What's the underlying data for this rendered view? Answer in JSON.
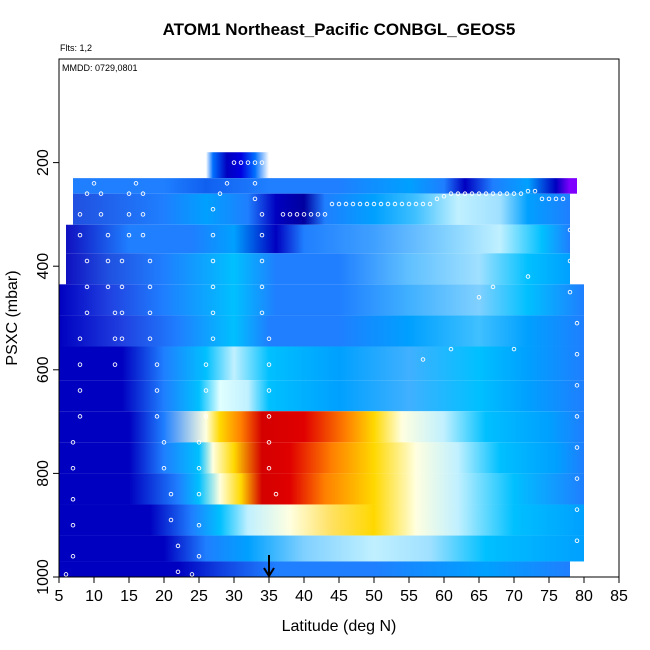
{
  "chart_data": {
    "type": "heatmap",
    "title": "ATOM1 Northeast_Pacific CONBGL_GEOS5",
    "annotations": {
      "flights": "Flts: 1,2",
      "dates": "MMDD: 0729,0801"
    },
    "xlabel": "Latitude (deg N)",
    "ylabel": "PSXC (mbar)",
    "xlim": [
      5,
      85
    ],
    "ylim": [
      1000,
      0
    ],
    "y_reversed": true,
    "xticks": [
      5,
      10,
      15,
      20,
      25,
      30,
      35,
      40,
      45,
      50,
      55,
      60,
      65,
      70,
      75,
      80,
      85
    ],
    "yticks": [
      200,
      400,
      600,
      800,
      1000
    ],
    "grid": false,
    "legend": "none",
    "marker_latitude": 35,
    "colors": {
      "low": "#0000c0",
      "mid_blue": "#1f7fff",
      "light_blue": "#00c0ff",
      "pale": "#ffffe0",
      "yellow": "#ffd800",
      "orange": "#ff8000",
      "red": "#d40000",
      "purple": "#8000ff"
    },
    "pressure_levels": [
      205,
      230,
      290,
      340,
      400,
      460,
      525,
      590,
      650,
      710,
      770,
      830,
      890,
      945,
      995
    ],
    "field_rows": [
      {
        "p": [
          180,
          230
        ],
        "lat": [
          26,
          35
        ],
        "stops": [
          [
            26,
            "#ffffff"
          ],
          [
            27,
            "#0070ff"
          ],
          [
            29,
            "#0000c0"
          ],
          [
            31,
            "#0000e0"
          ],
          [
            33,
            "#0070ff"
          ],
          [
            35,
            "#ffffff"
          ]
        ]
      },
      {
        "p": [
          230,
          260
        ],
        "lat": [
          7,
          79
        ],
        "stops": [
          [
            7,
            "#1f7fff"
          ],
          [
            20,
            "#1f7fff"
          ],
          [
            26,
            "#1060f0"
          ],
          [
            35,
            "#1f7fff"
          ],
          [
            45,
            "#1f7fff"
          ],
          [
            55,
            "#00a0ff"
          ],
          [
            60,
            "#1f7fff"
          ],
          [
            63,
            "#0000c0"
          ],
          [
            67,
            "#1f7fff"
          ],
          [
            72,
            "#00a0ff"
          ],
          [
            76,
            "#0000c0"
          ],
          [
            78,
            "#8000ff"
          ]
        ]
      },
      {
        "p": [
          260,
          320
        ],
        "lat": [
          7,
          78
        ],
        "stops": [
          [
            7,
            "#2050e0"
          ],
          [
            20,
            "#1f7fff"
          ],
          [
            26,
            "#00a0ff"
          ],
          [
            32,
            "#1f7fff"
          ],
          [
            36,
            "#0000c0"
          ],
          [
            40,
            "#0000a0"
          ],
          [
            43,
            "#1f7fff"
          ],
          [
            50,
            "#00a0ff"
          ],
          [
            56,
            "#40c0ff"
          ],
          [
            62,
            "#c0f0ff"
          ],
          [
            68,
            "#a0e0ff"
          ],
          [
            72,
            "#00a0ff"
          ],
          [
            78,
            "#1f7fff"
          ]
        ]
      },
      {
        "p": [
          320,
          375
        ],
        "lat": [
          6,
          78
        ],
        "stops": [
          [
            6,
            "#1010c0"
          ],
          [
            15,
            "#1f7fff"
          ],
          [
            24,
            "#1f7fff"
          ],
          [
            30,
            "#00a0ff"
          ],
          [
            36,
            "#0000c0"
          ],
          [
            40,
            "#1f7fff"
          ],
          [
            50,
            "#40a0ff"
          ],
          [
            60,
            "#80d0ff"
          ],
          [
            68,
            "#c0f0ff"
          ],
          [
            74,
            "#00c0ff"
          ],
          [
            78,
            "#1f7fff"
          ]
        ]
      },
      {
        "p": [
          375,
          435
        ],
        "lat": [
          6,
          78
        ],
        "stops": [
          [
            6,
            "#1010c0"
          ],
          [
            12,
            "#2050e0"
          ],
          [
            20,
            "#1f7fff"
          ],
          [
            30,
            "#00c0ff"
          ],
          [
            36,
            "#1f7fff"
          ],
          [
            45,
            "#1f7fff"
          ],
          [
            55,
            "#60c0ff"
          ],
          [
            65,
            "#a0e0ff"
          ],
          [
            72,
            "#00c0ff"
          ],
          [
            78,
            "#00a0ff"
          ]
        ]
      },
      {
        "p": [
          435,
          495
        ],
        "lat": [
          5,
          80
        ],
        "stops": [
          [
            5,
            "#0000c0"
          ],
          [
            12,
            "#2040e0"
          ],
          [
            20,
            "#1f7fff"
          ],
          [
            30,
            "#00c0ff"
          ],
          [
            36,
            "#1f7fff"
          ],
          [
            45,
            "#1f7fff"
          ],
          [
            55,
            "#40b0ff"
          ],
          [
            65,
            "#80d0ff"
          ],
          [
            72,
            "#00c0ff"
          ],
          [
            80,
            "#1f7fff"
          ]
        ]
      },
      {
        "p": [
          495,
          555
        ],
        "lat": [
          5,
          80
        ],
        "stops": [
          [
            5,
            "#0000c0"
          ],
          [
            14,
            "#2040e0"
          ],
          [
            22,
            "#1f7fff"
          ],
          [
            30,
            "#00c0ff"
          ],
          [
            35,
            "#1f7fff"
          ],
          [
            45,
            "#1f7fff"
          ],
          [
            55,
            "#00a0ff"
          ],
          [
            65,
            "#40c0ff"
          ],
          [
            72,
            "#00a0ff"
          ],
          [
            80,
            "#1f7fff"
          ]
        ]
      },
      {
        "p": [
          555,
          620
        ],
        "lat": [
          5,
          80
        ],
        "stops": [
          [
            5,
            "#0000c0"
          ],
          [
            14,
            "#0000c0"
          ],
          [
            20,
            "#1f7fff"
          ],
          [
            26,
            "#00c0ff"
          ],
          [
            30,
            "#c0f0ff"
          ],
          [
            35,
            "#00c0ff"
          ],
          [
            45,
            "#00a0ff"
          ],
          [
            55,
            "#40b0ff"
          ],
          [
            65,
            "#00c0ff"
          ],
          [
            72,
            "#00a0ff"
          ],
          [
            80,
            "#1f7fff"
          ]
        ]
      },
      {
        "p": [
          620,
          680
        ],
        "lat": [
          5,
          80
        ],
        "stops": [
          [
            5,
            "#0000c0"
          ],
          [
            14,
            "#0000c0"
          ],
          [
            20,
            "#1f7fff"
          ],
          [
            25,
            "#00c0ff"
          ],
          [
            28,
            "#e0ffff"
          ],
          [
            32,
            "#c0f0ff"
          ],
          [
            35,
            "#00c0ff"
          ],
          [
            45,
            "#00a0ff"
          ],
          [
            55,
            "#40b0ff"
          ],
          [
            65,
            "#00c0ff"
          ],
          [
            72,
            "#00a0ff"
          ],
          [
            80,
            "#1f7fff"
          ]
        ]
      },
      {
        "p": [
          680,
          740
        ],
        "lat": [
          5,
          80
        ],
        "stops": [
          [
            5,
            "#0000c0"
          ],
          [
            15,
            "#0000c0"
          ],
          [
            20,
            "#1f7fff"
          ],
          [
            26,
            "#ffffe0"
          ],
          [
            28,
            "#ffd800"
          ],
          [
            31,
            "#ff8000"
          ],
          [
            34,
            "#d40000"
          ],
          [
            40,
            "#e00000"
          ],
          [
            46,
            "#ff8000"
          ],
          [
            50,
            "#ffd800"
          ],
          [
            54,
            "#ffffe0"
          ],
          [
            60,
            "#c0f0ff"
          ],
          [
            66,
            "#00c0ff"
          ],
          [
            75,
            "#00a0ff"
          ],
          [
            80,
            "#1f7fff"
          ]
        ]
      },
      {
        "p": [
          740,
          800
        ],
        "lat": [
          5,
          80
        ],
        "stops": [
          [
            5,
            "#0000c0"
          ],
          [
            15,
            "#0000c0"
          ],
          [
            20,
            "#1f7fff"
          ],
          [
            25,
            "#00c0ff"
          ],
          [
            27,
            "#ffffe0"
          ],
          [
            30,
            "#ffd800"
          ],
          [
            34,
            "#d40000"
          ],
          [
            38,
            "#e00000"
          ],
          [
            44,
            "#ff8000"
          ],
          [
            50,
            "#ffd800"
          ],
          [
            56,
            "#ffffe0"
          ],
          [
            62,
            "#c0f0ff"
          ],
          [
            68,
            "#00c0ff"
          ],
          [
            76,
            "#00a0ff"
          ],
          [
            80,
            "#1f7fff"
          ]
        ]
      },
      {
        "p": [
          800,
          860
        ],
        "lat": [
          5,
          80
        ],
        "stops": [
          [
            5,
            "#0000c0"
          ],
          [
            15,
            "#0000c0"
          ],
          [
            22,
            "#1f7fff"
          ],
          [
            25,
            "#00c0ff"
          ],
          [
            28,
            "#ffffe0"
          ],
          [
            31,
            "#ffd800"
          ],
          [
            34,
            "#d40000"
          ],
          [
            38,
            "#e00000"
          ],
          [
            43,
            "#ff8000"
          ],
          [
            50,
            "#ffd800"
          ],
          [
            56,
            "#ffffe0"
          ],
          [
            62,
            "#c0f0ff"
          ],
          [
            70,
            "#00c0ff"
          ],
          [
            80,
            "#1f7fff"
          ]
        ]
      },
      {
        "p": [
          860,
          920
        ],
        "lat": [
          5,
          80
        ],
        "stops": [
          [
            5,
            "#0000c0"
          ],
          [
            18,
            "#0000c0"
          ],
          [
            24,
            "#1f7fff"
          ],
          [
            28,
            "#00c0ff"
          ],
          [
            32,
            "#c0f0ff"
          ],
          [
            38,
            "#ffffe0"
          ],
          [
            44,
            "#ffe060"
          ],
          [
            50,
            "#ffd800"
          ],
          [
            56,
            "#ffffe0"
          ],
          [
            62,
            "#c0f0ff"
          ],
          [
            70,
            "#00c0ff"
          ],
          [
            80,
            "#00a0ff"
          ]
        ]
      },
      {
        "p": [
          920,
          970
        ],
        "lat": [
          5,
          80
        ],
        "stops": [
          [
            5,
            "#0000c0"
          ],
          [
            20,
            "#0000c0"
          ],
          [
            26,
            "#1f7fff"
          ],
          [
            32,
            "#00a0ff"
          ],
          [
            40,
            "#80d0ff"
          ],
          [
            50,
            "#c0f0ff"
          ],
          [
            58,
            "#a0e0ff"
          ],
          [
            66,
            "#00c0ff"
          ],
          [
            80,
            "#00a0ff"
          ]
        ]
      },
      {
        "p": [
          970,
          1000
        ],
        "lat": [
          5,
          78
        ],
        "stops": [
          [
            5,
            "#0000c0"
          ],
          [
            22,
            "#0000c0"
          ],
          [
            28,
            "#1040e0"
          ],
          [
            36,
            "#1f7fff"
          ],
          [
            50,
            "#1f7fff"
          ],
          [
            66,
            "#00a0ff"
          ],
          [
            78,
            "#1f7fff"
          ]
        ]
      }
    ],
    "flight_track": [
      [
        6,
        995
      ],
      [
        7,
        960
      ],
      [
        7,
        900
      ],
      [
        7,
        850
      ],
      [
        7,
        790
      ],
      [
        7,
        740
      ],
      [
        8,
        690
      ],
      [
        8,
        640
      ],
      [
        8,
        590
      ],
      [
        8,
        540
      ],
      [
        9,
        490
      ],
      [
        9,
        440
      ],
      [
        9,
        390
      ],
      [
        8,
        340
      ],
      [
        8,
        300
      ],
      [
        9,
        260
      ],
      [
        10,
        240
      ],
      [
        11,
        260
      ],
      [
        11,
        300
      ],
      [
        12,
        340
      ],
      [
        12,
        390
      ],
      [
        12,
        440
      ],
      [
        13,
        490
      ],
      [
        13,
        540
      ],
      [
        13,
        590
      ],
      [
        14,
        540
      ],
      [
        14,
        490
      ],
      [
        14,
        440
      ],
      [
        14,
        390
      ],
      [
        15,
        340
      ],
      [
        15,
        300
      ],
      [
        15,
        260
      ],
      [
        16,
        240
      ],
      [
        17,
        260
      ],
      [
        17,
        300
      ],
      [
        17,
        340
      ],
      [
        18,
        390
      ],
      [
        18,
        440
      ],
      [
        18,
        490
      ],
      [
        18,
        540
      ],
      [
        19,
        590
      ],
      [
        19,
        640
      ],
      [
        19,
        690
      ],
      [
        20,
        740
      ],
      [
        20,
        790
      ],
      [
        21,
        840
      ],
      [
        21,
        890
      ],
      [
        22,
        940
      ],
      [
        22,
        990
      ],
      [
        24,
        995
      ],
      [
        25,
        960
      ],
      [
        25,
        900
      ],
      [
        25,
        840
      ],
      [
        25,
        790
      ],
      [
        25,
        740
      ],
      [
        26,
        690
      ],
      [
        26,
        640
      ],
      [
        26,
        590
      ],
      [
        27,
        540
      ],
      [
        27,
        490
      ],
      [
        27,
        440
      ],
      [
        27,
        390
      ],
      [
        27,
        340
      ],
      [
        27,
        290
      ],
      [
        28,
        260
      ],
      [
        29,
        240
      ],
      [
        30,
        200
      ],
      [
        31,
        200
      ],
      [
        32,
        200
      ],
      [
        33,
        200
      ],
      [
        34,
        200
      ],
      [
        33,
        240
      ],
      [
        33,
        270
      ],
      [
        34,
        300
      ],
      [
        34,
        340
      ],
      [
        34,
        390
      ],
      [
        34,
        440
      ],
      [
        34,
        490
      ],
      [
        35,
        540
      ],
      [
        35,
        590
      ],
      [
        35,
        640
      ],
      [
        35,
        690
      ],
      [
        35,
        740
      ],
      [
        35,
        790
      ],
      [
        36,
        840
      ],
      [
        37,
        300
      ],
      [
        38,
        300
      ],
      [
        39,
        300
      ],
      [
        40,
        300
      ],
      [
        41,
        300
      ],
      [
        42,
        300
      ],
      [
        43,
        300
      ],
      [
        44,
        280
      ],
      [
        45,
        280
      ],
      [
        46,
        280
      ],
      [
        47,
        280
      ],
      [
        48,
        280
      ],
      [
        49,
        280
      ],
      [
        50,
        280
      ],
      [
        51,
        280
      ],
      [
        52,
        280
      ],
      [
        53,
        280
      ],
      [
        54,
        280
      ],
      [
        55,
        280
      ],
      [
        56,
        280
      ],
      [
        57,
        280
      ],
      [
        58,
        280
      ],
      [
        59,
        270
      ],
      [
        60,
        265
      ],
      [
        61,
        260
      ],
      [
        62,
        260
      ],
      [
        63,
        260
      ],
      [
        64,
        260
      ],
      [
        65,
        260
      ],
      [
        66,
        260
      ],
      [
        67,
        260
      ],
      [
        68,
        260
      ],
      [
        69,
        260
      ],
      [
        70,
        260
      ],
      [
        71,
        260
      ],
      [
        72,
        255
      ],
      [
        73,
        255
      ],
      [
        74,
        270
      ],
      [
        75,
        270
      ],
      [
        76,
        270
      ],
      [
        77,
        270
      ],
      [
        78,
        330
      ],
      [
        78,
        390
      ],
      [
        78,
        450
      ],
      [
        79,
        510
      ],
      [
        79,
        570
      ],
      [
        79,
        630
      ],
      [
        79,
        690
      ],
      [
        79,
        750
      ],
      [
        79,
        810
      ],
      [
        79,
        870
      ],
      [
        79,
        930
      ],
      [
        79,
        975
      ],
      [
        70,
        560
      ],
      [
        65,
        460
      ],
      [
        61,
        560
      ],
      [
        57,
        580
      ],
      [
        72,
        420
      ],
      [
        67,
        440
      ]
    ]
  }
}
